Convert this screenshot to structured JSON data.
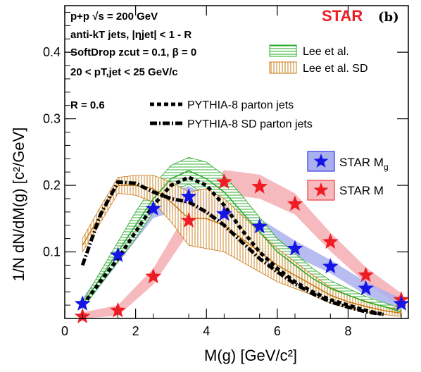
{
  "chart_data": {
    "type": "line",
    "title": "",
    "xlabel": "M(g) [GeV/c²]",
    "ylabel": "1/N dN/dM(g) [c²/GeV]",
    "xlim": [
      0,
      9.7
    ],
    "ylim": [
      0,
      0.47
    ],
    "x_ticks": [
      0,
      2,
      4,
      6,
      8
    ],
    "y_ticks": [
      0.1,
      0.2,
      0.3,
      0.4
    ],
    "experiment_label": "STAR",
    "panel_label": "(b)",
    "info_lines": [
      "p+p √s = 200 GeV",
      "anti-kT jets, |ηjet| < 1 - R",
      "SoftDrop zcut = 0.1, β = 0",
      "20 < pT,jet < 25 GeV/c",
      "R = 0.6"
    ],
    "legend": {
      "lee": "Lee et al.",
      "lee_sd": "Lee et al. SD",
      "pythia": "PYTHIA-8 parton jets",
      "pythia_sd": "PYTHIA-8 SD parton jets",
      "star_mg": "STAR Mg",
      "star_m": "STAR M"
    },
    "colors": {
      "star_red": "#ee1c24",
      "mg_marker": "#1515e6",
      "mg_band": "#aab0ee",
      "m_band": "#f6b9bd",
      "lee": "#22aa22",
      "lee_sd": "#c87810"
    },
    "series": [
      {
        "name": "STAR Mg",
        "x": [
          0.5,
          1.5,
          2.5,
          3.5,
          4.5,
          5.5,
          6.5,
          7.5,
          8.5,
          9.5
        ],
        "y": [
          0.022,
          0.095,
          0.165,
          0.183,
          0.157,
          0.138,
          0.105,
          0.078,
          0.045,
          0.022
        ],
        "err": [
          0.008,
          0.012,
          0.014,
          0.016,
          0.014,
          0.012,
          0.012,
          0.01,
          0.01,
          0.008
        ]
      },
      {
        "name": "STAR M",
        "x": [
          0.5,
          1.5,
          2.5,
          3.5,
          4.5,
          5.5,
          6.5,
          7.5,
          8.5,
          9.5
        ],
        "y": [
          0.003,
          0.012,
          0.063,
          0.147,
          0.205,
          0.198,
          0.172,
          0.115,
          0.065,
          0.028
        ],
        "err": [
          0.006,
          0.008,
          0.012,
          0.018,
          0.018,
          0.018,
          0.016,
          0.014,
          0.012,
          0.01
        ]
      },
      {
        "name": "PYTHIA-8 parton jets",
        "x": [
          0.5,
          1.0,
          1.5,
          2.0,
          2.5,
          3.0,
          3.5,
          4.0,
          4.5,
          5.0,
          5.5,
          6.0,
          6.5,
          7.0,
          7.5,
          8.0,
          8.5,
          9.0
        ],
        "y": [
          0.02,
          0.055,
          0.09,
          0.13,
          0.17,
          0.2,
          0.212,
          0.2,
          0.17,
          0.133,
          0.1,
          0.075,
          0.055,
          0.04,
          0.028,
          0.02,
          0.012,
          0.006
        ]
      },
      {
        "name": "PYTHIA-8 SD parton jets",
        "x": [
          0.5,
          1.0,
          1.5,
          2.0,
          2.5,
          3.0,
          3.5,
          4.0,
          4.5,
          5.0,
          5.5,
          6.0,
          6.5,
          7.0,
          7.5,
          8.0,
          8.5,
          9.0
        ],
        "y": [
          0.08,
          0.155,
          0.205,
          0.203,
          0.19,
          0.18,
          0.175,
          0.16,
          0.14,
          0.115,
          0.09,
          0.07,
          0.052,
          0.037,
          0.025,
          0.017,
          0.01,
          0.006
        ]
      },
      {
        "name": "Lee et al.",
        "x": [
          0.5,
          1.0,
          1.5,
          2.0,
          2.5,
          3.0,
          3.5,
          4.0,
          4.5,
          5.0,
          5.5,
          6.0,
          6.5,
          7.0,
          7.5,
          8.0,
          8.5,
          9.0,
          9.5
        ],
        "y": [
          0.02,
          0.06,
          0.1,
          0.14,
          0.18,
          0.21,
          0.222,
          0.21,
          0.19,
          0.16,
          0.13,
          0.1,
          0.08,
          0.06,
          0.045,
          0.035,
          0.025,
          0.018,
          0.01
        ],
        "err": [
          0.005,
          0.01,
          0.015,
          0.02,
          0.02,
          0.02,
          0.02,
          0.025,
          0.025,
          0.025,
          0.022,
          0.02,
          0.018,
          0.015,
          0.012,
          0.01,
          0.008,
          0.006,
          0.005
        ]
      },
      {
        "name": "Lee et al. SD",
        "x": [
          0.5,
          1.0,
          1.5,
          2.0,
          2.5,
          3.0,
          3.5,
          4.0,
          4.5,
          5.0,
          5.5,
          6.0,
          6.5,
          7.0,
          7.5,
          8.0,
          8.5,
          9.0,
          9.5
        ],
        "y": [
          0.11,
          0.155,
          0.2,
          0.2,
          0.195,
          0.175,
          0.15,
          0.15,
          0.14,
          0.12,
          0.1,
          0.08,
          0.065,
          0.05,
          0.035,
          0.025,
          0.018,
          0.012,
          0.008
        ],
        "err": [
          0.01,
          0.012,
          0.012,
          0.015,
          0.02,
          0.03,
          0.04,
          0.045,
          0.04,
          0.035,
          0.03,
          0.025,
          0.02,
          0.015,
          0.012,
          0.01,
          0.008,
          0.006,
          0.005
        ]
      }
    ]
  }
}
